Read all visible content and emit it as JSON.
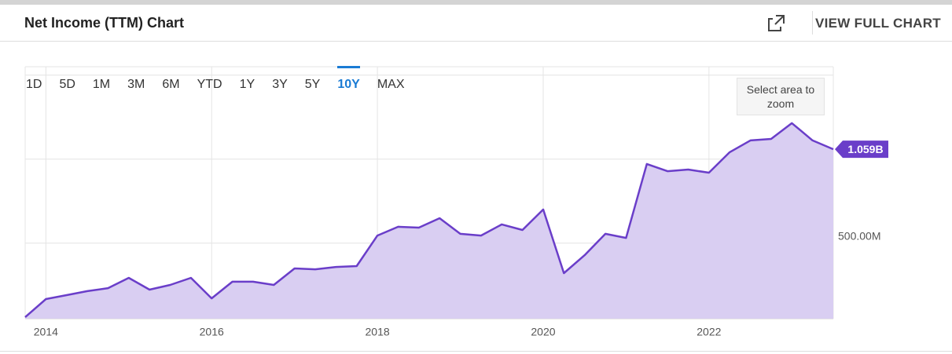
{
  "header": {
    "title": "Net Income (TTM) Chart",
    "view_full_chart": "VIEW FULL CHART"
  },
  "range_buttons": [
    "1D",
    "5D",
    "1M",
    "3M",
    "6M",
    "YTD",
    "1Y",
    "3Y",
    "5Y",
    "10Y",
    "MAX"
  ],
  "active_range": 9,
  "zoom_hint": "Select area to zoom",
  "chart_data": {
    "type": "area",
    "x": [
      2013.75,
      2014,
      2014.25,
      2014.5,
      2014.75,
      2015,
      2015.25,
      2015.5,
      2015.75,
      2016,
      2016.25,
      2016.5,
      2016.75,
      2017,
      2017.25,
      2017.5,
      2017.75,
      2018,
      2018.25,
      2018.5,
      2018.75,
      2019,
      2019.25,
      2019.5,
      2019.75,
      2020,
      2020.25,
      2020.5,
      2020.75,
      2021,
      2021.25,
      2021.5,
      2021.75,
      2022,
      2022.25,
      2022.5,
      2022.75,
      2023,
      2023.25,
      2023.5
    ],
    "values": [
      59,
      167,
      190,
      214,
      232,
      293,
      223,
      251,
      293,
      171,
      270,
      270,
      251,
      349,
      344,
      358,
      363,
      545,
      597,
      592,
      648,
      555,
      545,
      611,
      578,
      700,
      321,
      428,
      555,
      531,
      971,
      928,
      938,
      919,
      1041,
      1111,
      1120,
      1214,
      1111,
      1059
    ],
    "value_labels": [
      null,
      null,
      null,
      null,
      null,
      null,
      null,
      null,
      null,
      null,
      null,
      null,
      null,
      null,
      null,
      null,
      null,
      null,
      null,
      null,
      null,
      null,
      null,
      null,
      null,
      null,
      null,
      null,
      null,
      null,
      null,
      null,
      null,
      null,
      null,
      null,
      null,
      null,
      null,
      "1.059B"
    ],
    "color": "#6a3ec9",
    "fill_color": "#d9cef2",
    "xlim": [
      2013.75,
      2023.5
    ],
    "xticks": [
      2014,
      2016,
      2018,
      2020,
      2022
    ],
    "ylim": [
      50,
      1550
    ],
    "yticks": [
      {
        "value": 500,
        "label": "500.00M"
      },
      {
        "value": 1000,
        "label": null
      },
      {
        "value": 1500,
        "label": null
      }
    ],
    "grid": true
  }
}
